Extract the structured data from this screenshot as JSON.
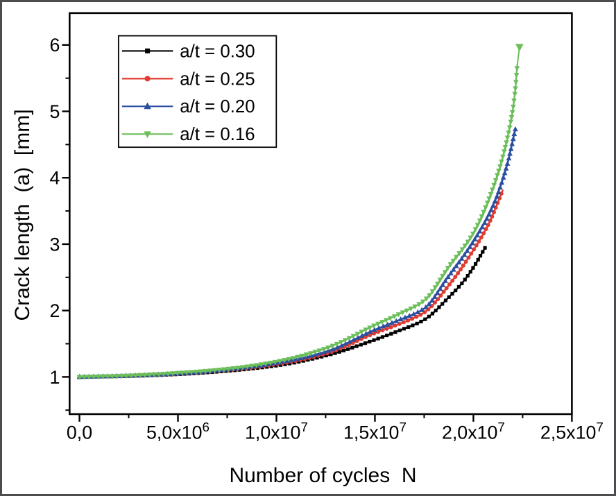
{
  "figure": {
    "background": "#ffffff",
    "border_color": "#4c4c4e",
    "axis_color": "#000000"
  },
  "chart_data": {
    "type": "line",
    "title": "",
    "xlabel": "Number of cycles  N",
    "ylabel": "Crack length  (a)  [mm]",
    "xlim": [
      -500000,
      25000000
    ],
    "ylim": [
      0.44,
      6.48
    ],
    "grid": false,
    "legend_position": "inside-top-left",
    "x_ticks": {
      "values": [
        0,
        5000000,
        10000000,
        15000000,
        20000000,
        25000000
      ],
      "labels": [
        "0,0",
        "5,0x10^6",
        "1,0x10^7",
        "1,5x10^7",
        "2,0x10^7",
        "2,5x10^7"
      ],
      "minor": [
        2500000,
        7500000,
        12500000,
        17500000,
        22500000
      ]
    },
    "y_ticks": {
      "values": [
        1,
        2,
        3,
        4,
        5,
        6
      ],
      "labels": [
        "1",
        "2",
        "3",
        "4",
        "5",
        "6"
      ],
      "minor": [
        0.5,
        1.5,
        2.5,
        3.5,
        4.5,
        5.5
      ]
    },
    "series": [
      {
        "name": "a/t = 0.30",
        "color": "#000000",
        "marker": "square",
        "isolated_last": false,
        "points": [
          [
            0,
            1.0
          ],
          [
            2500000,
            1.012
          ],
          [
            5000000,
            1.04
          ],
          [
            7500000,
            1.09
          ],
          [
            10000000,
            1.17
          ],
          [
            12500000,
            1.32
          ],
          [
            15000000,
            1.56
          ],
          [
            16250000,
            1.7
          ],
          [
            17500000,
            1.86
          ],
          [
            18750000,
            2.2
          ],
          [
            19500000,
            2.44
          ],
          [
            20000000,
            2.65
          ],
          [
            20600000,
            2.95
          ]
        ]
      },
      {
        "name": "a/t = 0.25",
        "color": "#e03c30",
        "marker": "circle",
        "isolated_last": false,
        "points": [
          [
            0,
            1.0
          ],
          [
            2500000,
            1.015
          ],
          [
            5000000,
            1.045
          ],
          [
            7500000,
            1.1
          ],
          [
            10000000,
            1.19
          ],
          [
            12500000,
            1.35
          ],
          [
            15000000,
            1.66
          ],
          [
            16250000,
            1.8
          ],
          [
            17500000,
            1.97
          ],
          [
            18750000,
            2.38
          ],
          [
            20000000,
            2.91
          ],
          [
            20800000,
            3.32
          ],
          [
            21500000,
            3.82
          ]
        ]
      },
      {
        "name": "a/t = 0.20",
        "color": "#2b4ea0",
        "marker": "triangle-up",
        "isolated_last": false,
        "points": [
          [
            0,
            1.0
          ],
          [
            2500000,
            1.018
          ],
          [
            5000000,
            1.05
          ],
          [
            7500000,
            1.11
          ],
          [
            10000000,
            1.21
          ],
          [
            12500000,
            1.38
          ],
          [
            15000000,
            1.71
          ],
          [
            16250000,
            1.86
          ],
          [
            17500000,
            2.03
          ],
          [
            18750000,
            2.52
          ],
          [
            20000000,
            3.04
          ],
          [
            21000000,
            3.58
          ],
          [
            21700000,
            4.18
          ],
          [
            22130000,
            4.73
          ]
        ]
      },
      {
        "name": "a/t = 0.16",
        "color": "#6cbe5a",
        "marker": "triangle-down",
        "isolated_last": true,
        "points": [
          [
            0,
            1.0
          ],
          [
            2500000,
            1.02
          ],
          [
            5000000,
            1.06
          ],
          [
            7500000,
            1.12
          ],
          [
            10000000,
            1.23
          ],
          [
            12500000,
            1.43
          ],
          [
            15000000,
            1.78
          ],
          [
            16250000,
            1.95
          ],
          [
            17500000,
            2.15
          ],
          [
            18750000,
            2.66
          ],
          [
            20000000,
            3.17
          ],
          [
            21000000,
            3.85
          ],
          [
            21800000,
            4.7
          ],
          [
            22100000,
            5.25
          ],
          [
            22230000,
            5.7
          ],
          [
            22340000,
            5.97
          ]
        ]
      }
    ]
  }
}
